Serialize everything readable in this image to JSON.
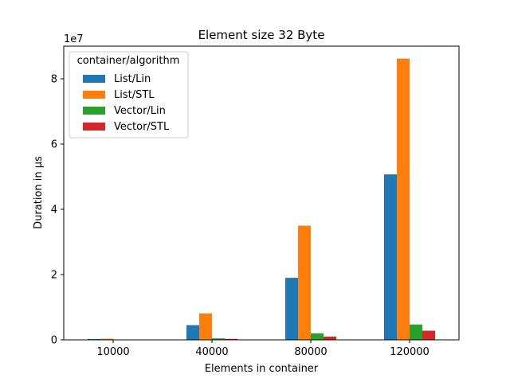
{
  "chart_data": {
    "type": "bar",
    "title": "Element size 32 Byte",
    "xlabel": "Elements in container",
    "ylabel": "Duration in µs",
    "y_offset_label": "1e7",
    "categories": [
      "10000",
      "40000",
      "80000",
      "120000"
    ],
    "ylim": [
      0,
      90000000
    ],
    "y_ticks": [
      0,
      20000000,
      40000000,
      60000000,
      80000000
    ],
    "y_tick_labels": [
      "0",
      "2",
      "4",
      "6",
      "8"
    ],
    "grid": false,
    "legend": {
      "title": "container/algorithm",
      "placement": "top-left"
    },
    "series": [
      {
        "name": "List/Lin",
        "color": "#1f77b4",
        "values": [
          250000,
          4500000,
          19000000,
          50700000
        ]
      },
      {
        "name": "List/STL",
        "color": "#ff7f0e",
        "values": [
          350000,
          8100000,
          35000000,
          86200000
        ]
      },
      {
        "name": "Vector/Lin",
        "color": "#2ca02c",
        "values": [
          20000,
          450000,
          2000000,
          4700000
        ]
      },
      {
        "name": "Vector/STL",
        "color": "#d62728",
        "values": [
          15000,
          300000,
          1000000,
          2800000
        ]
      }
    ]
  }
}
